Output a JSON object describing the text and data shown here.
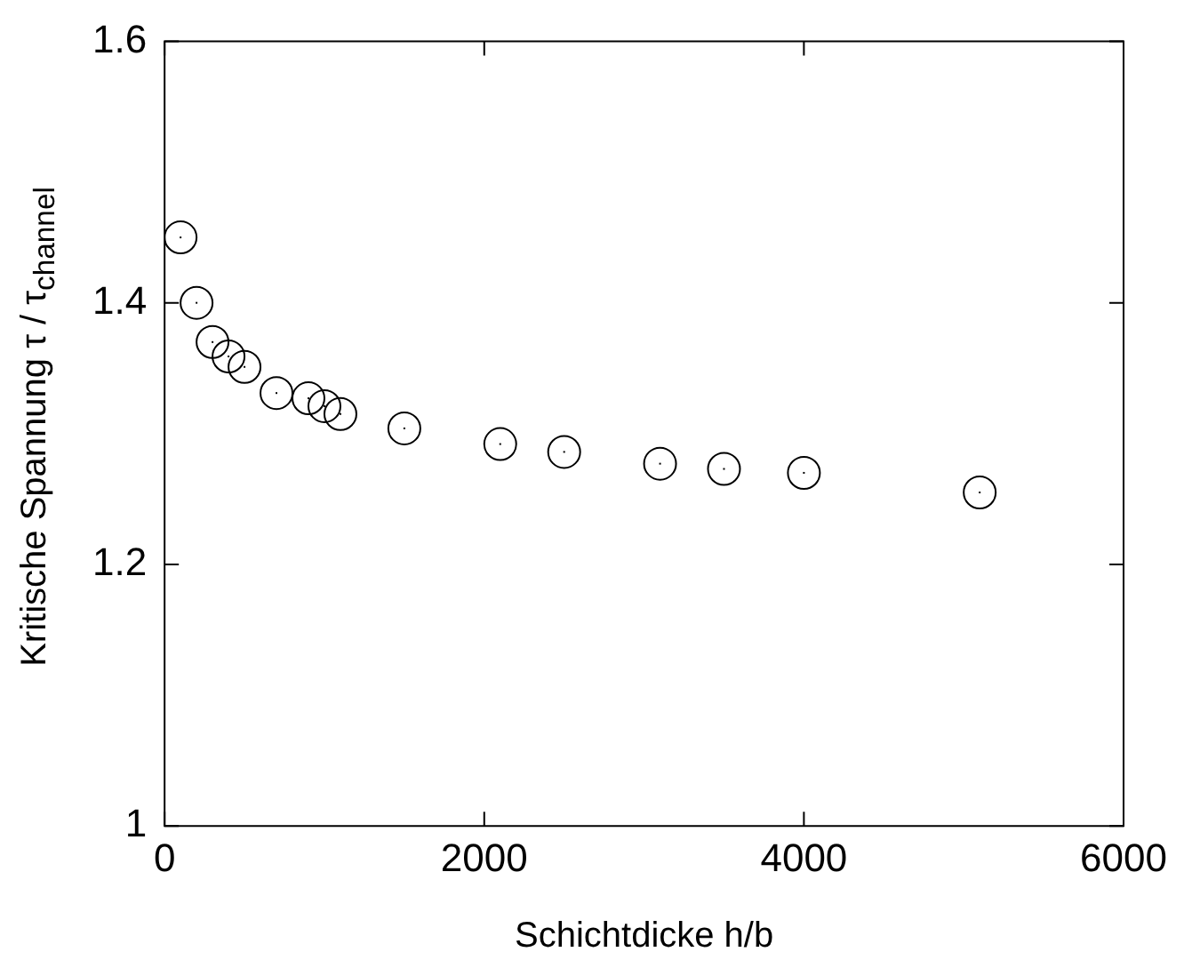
{
  "chart_data": {
    "type": "scatter",
    "xlabel": "Schichtdicke h/b",
    "ylabel": "Kritische Spannung τ / τ$_{channel}$",
    "x": [
      100,
      200,
      300,
      400,
      500,
      700,
      900,
      1000,
      1100,
      1500,
      2100,
      2500,
      3100,
      3500,
      4000,
      5100
    ],
    "series": [
      {
        "color": "#000000",
        "values": [
          1.45,
          1.4,
          1.37,
          1.359,
          1.351,
          1.331,
          1.327,
          1.321,
          1.315,
          1.304,
          1.292,
          1.286,
          1.277,
          1.273,
          1.27,
          1.255
        ]
      }
    ],
    "xlim": [
      0,
      6000
    ],
    "xticks": [
      0,
      2000,
      4000,
      6000
    ],
    "ylim": [
      1,
      1.6
    ],
    "yticks": [
      1,
      1.2,
      1.4,
      1.6
    ],
    "grid": false,
    "legend": false,
    "marker": "circle"
  }
}
